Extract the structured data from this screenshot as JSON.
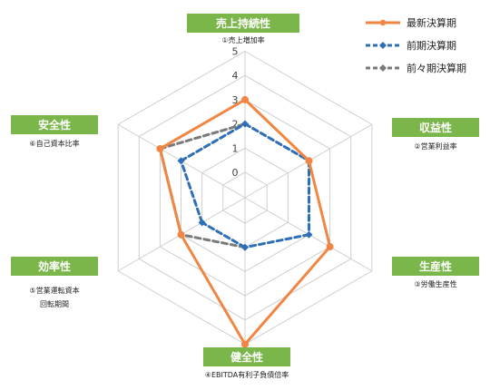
{
  "chart_data": {
    "type": "radar",
    "axes": [
      {
        "label": "売上持続性",
        "sub": [
          "①売上増加率"
        ]
      },
      {
        "label": "収益性",
        "sub": [
          "②営業利益率"
        ]
      },
      {
        "label": "生産性",
        "sub": [
          "③労働生産性"
        ]
      },
      {
        "label": "健全性",
        "sub": [
          "④EBITDA有利子負債倍率"
        ]
      },
      {
        "label": "効率性",
        "sub": [
          "⑤営業運転資本",
          "回転期間"
        ]
      },
      {
        "label": "安全性",
        "sub": [
          "⑥自己資本比率"
        ]
      }
    ],
    "scale": {
      "min": 0,
      "max": 5,
      "ticks": [
        "0",
        "1",
        "2",
        "3",
        "4",
        "5"
      ]
    },
    "series": [
      {
        "name": "最新決算期",
        "values": [
          3,
          2,
          3,
          5,
          2,
          3
        ],
        "color": "#f08642",
        "style": "solid"
      },
      {
        "name": "前期決算期",
        "values": [
          2,
          2,
          2,
          1,
          1,
          2
        ],
        "color": "#2e6fb7",
        "style": "dashed"
      },
      {
        "name": "前々期決算期",
        "values": [
          2,
          null,
          null,
          1,
          2,
          3
        ],
        "color": "#7a7a7a",
        "style": "dashed"
      }
    ],
    "grid": true,
    "legend": "top-right"
  }
}
